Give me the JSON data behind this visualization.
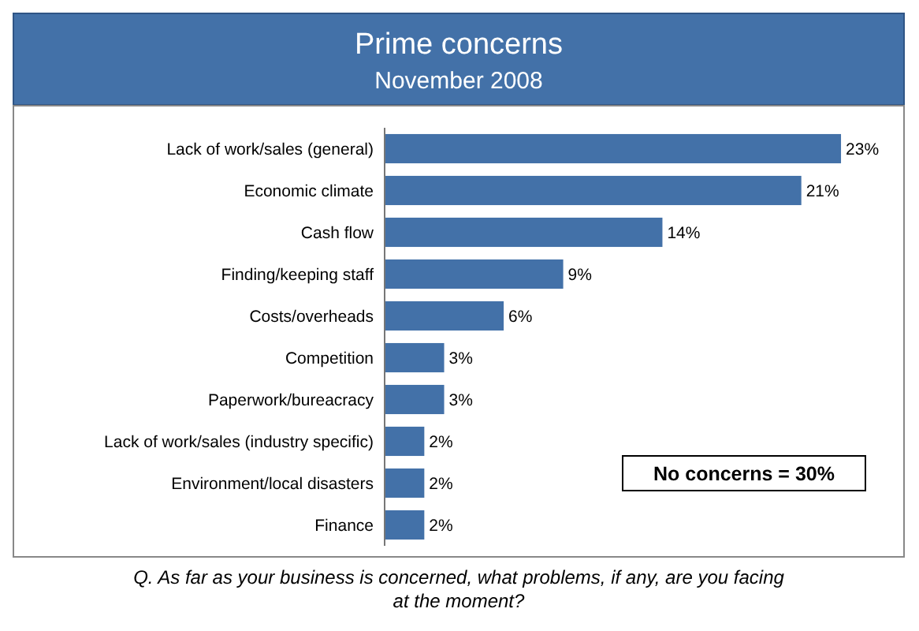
{
  "chart_data": {
    "type": "bar",
    "orientation": "horizontal",
    "title": "Prime concerns",
    "subtitle": "November 2008",
    "categories": [
      "Lack of work/sales (general)",
      "Economic climate",
      "Cash flow",
      "Finding/keeping staff",
      "Costs/overheads",
      "Competition",
      "Paperwork/bureacracy",
      "Lack of work/sales (industry specific)",
      "Environment/local disasters",
      "Finance"
    ],
    "values": [
      23,
      21,
      14,
      9,
      6,
      3,
      3,
      2,
      2,
      2
    ],
    "value_labels": [
      "23%",
      "21%",
      "14%",
      "9%",
      "6%",
      "3%",
      "3%",
      "2%",
      "2%",
      "2%"
    ],
    "color": "#4371a8",
    "annotations": [
      "No concerns = 30%",
      "Q. As far as your business is concerned, what problems, if any, are you facing at the moment?"
    ]
  }
}
